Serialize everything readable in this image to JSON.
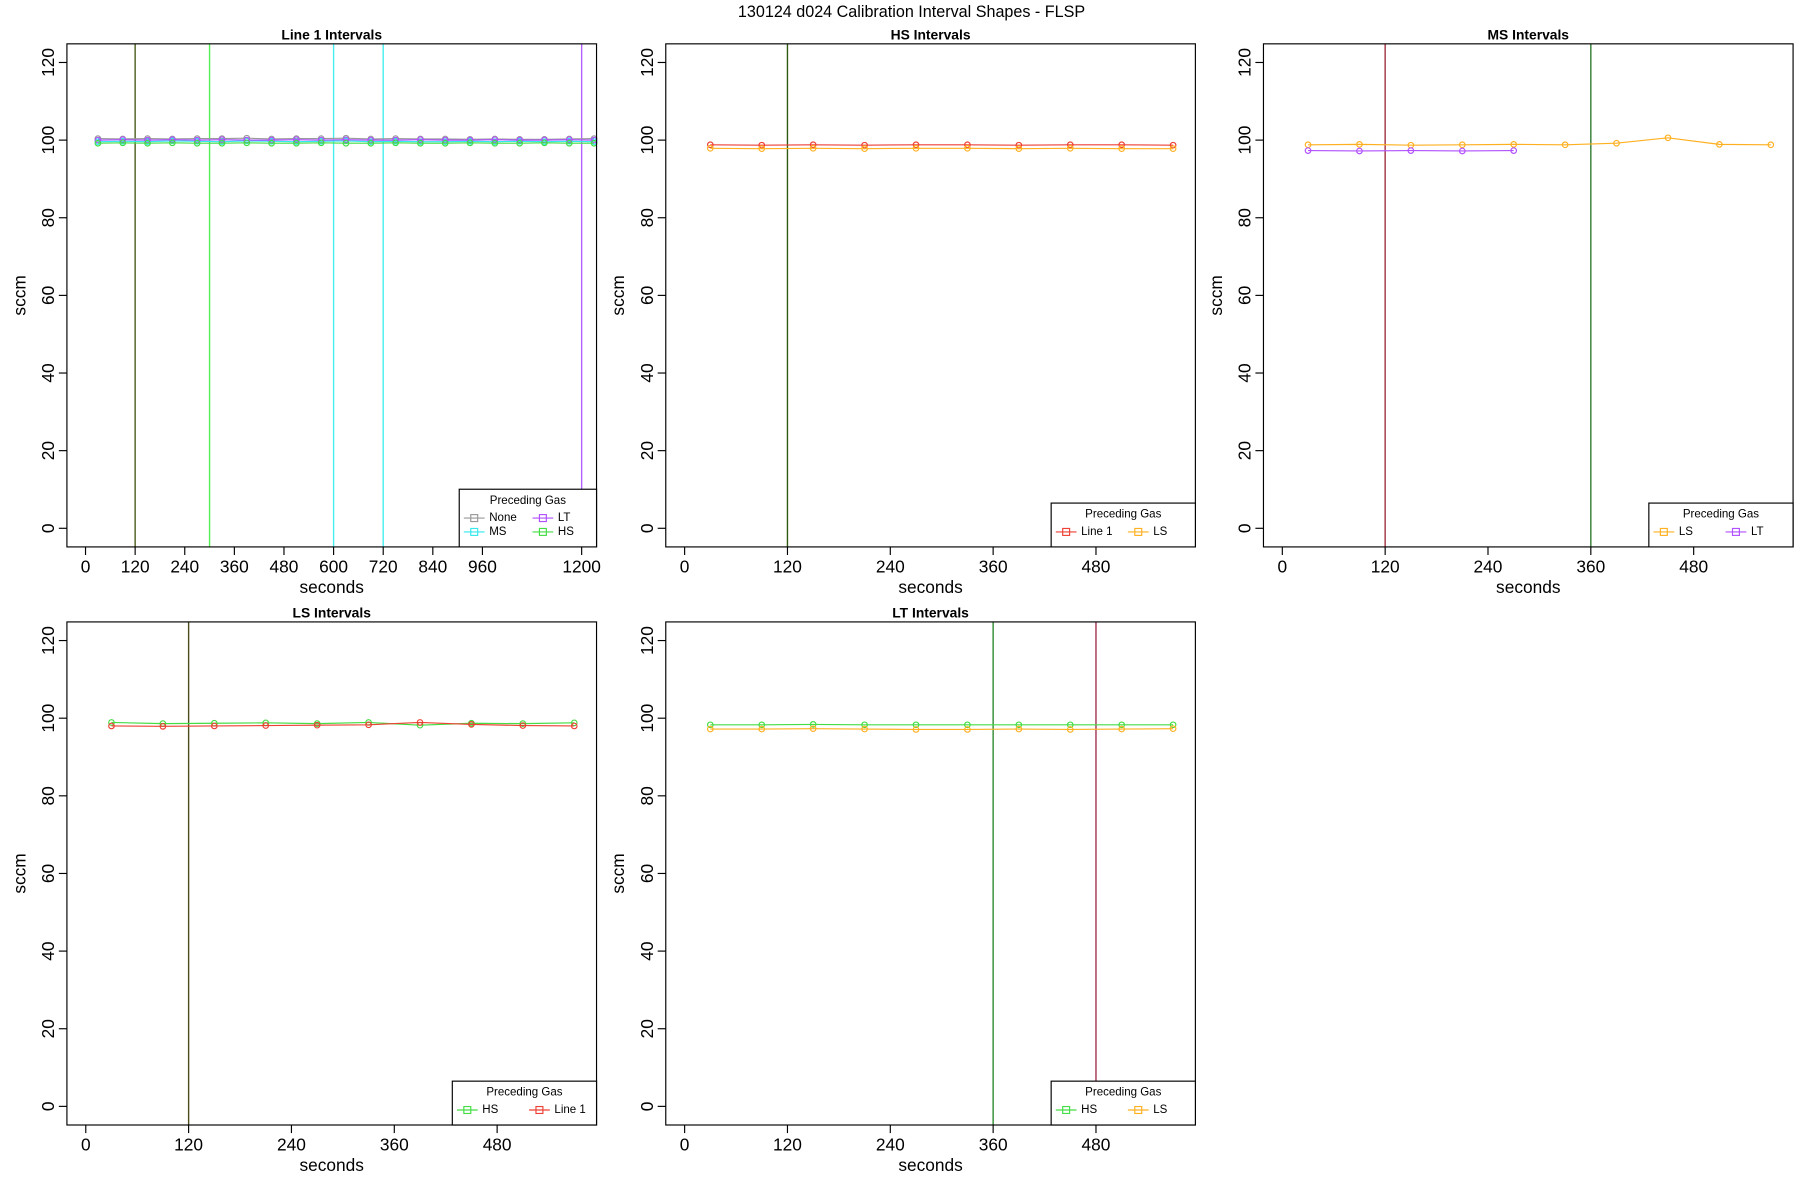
{
  "title": "130124   d024   Calibration Interval Shapes - FLSP",
  "chart_data": [
    {
      "type": "line",
      "title": "Line 1 Intervals",
      "xlabel": "seconds",
      "ylabel": "sccm",
      "x": [
        30,
        90,
        150,
        210,
        270,
        330,
        390,
        450,
        510,
        570,
        630,
        690,
        750,
        810,
        870,
        930,
        990,
        1050,
        1110,
        1170,
        1230
      ],
      "xlim": [
        -45,
        1236
      ],
      "ylim": [
        -4.8,
        124.8
      ],
      "xticks": [
        0,
        120,
        240,
        360,
        480,
        600,
        720,
        840,
        960,
        1200
      ],
      "yticks": [
        0,
        20,
        40,
        60,
        80,
        100,
        120
      ],
      "legend_title": "Preceding Gas",
      "legend": "bottomright",
      "series": [
        {
          "name": "None",
          "color": "#999999",
          "values": [
            100.4,
            100.3,
            100.4,
            100.3,
            100.4,
            100.4,
            100.5,
            100.3,
            100.4,
            100.4,
            100.5,
            100.3,
            100.4,
            100.3,
            100.3,
            100.2,
            100.3,
            100.2,
            100.2,
            100.3,
            100.4
          ]
        },
        {
          "name": "MS",
          "color": "#33e8ee",
          "values": [
            99.6,
            99.7,
            99.6,
            99.8,
            99.7,
            99.6,
            99.8,
            99.7,
            99.6,
            99.7,
            99.8,
            99.6,
            99.7,
            99.6,
            99.6,
            99.7,
            99.6,
            99.7,
            99.6,
            99.7,
            99.6
          ]
        },
        {
          "name": "LT",
          "color": "#b050ff",
          "values": [
            100.0,
            100.1,
            100.0,
            100.1,
            100.0,
            100.1,
            100.0,
            100.0,
            100.1,
            100.0,
            100.1,
            100.0,
            100.0,
            100.1,
            100.0,
            100.0,
            100.1,
            100.0,
            100.0,
            100.1,
            100.0
          ]
        },
        {
          "name": "HS",
          "color": "#44dd44",
          "values": [
            99.2,
            99.3,
            99.2,
            99.3,
            99.2,
            99.2,
            99.3,
            99.2,
            99.2,
            99.3,
            99.2,
            99.2,
            99.3,
            99.2,
            99.2,
            99.3,
            99.2,
            99.2,
            99.3,
            99.2,
            99.2
          ]
        }
      ],
      "vlines": {
        "x": [
          120,
          300,
          600,
          720,
          1200
        ],
        "colors": [
          "#4a5a1a",
          "#55ee55",
          "#44eeee",
          "#44eeee",
          "#b060ff"
        ]
      }
    },
    {
      "type": "line",
      "title": "HS Intervals",
      "xlabel": "seconds",
      "ylabel": "sccm",
      "x": [
        30,
        90,
        150,
        210,
        270,
        330,
        390,
        450,
        510,
        570
      ],
      "xlim": [
        -22,
        596
      ],
      "ylim": [
        -4.8,
        124.8
      ],
      "xticks": [
        0,
        120,
        240,
        360,
        480
      ],
      "yticks": [
        0,
        20,
        40,
        60,
        80,
        100,
        120
      ],
      "legend_title": "Preceding Gas",
      "legend": "bottomright",
      "series": [
        {
          "name": "Line 1",
          "color": "#ee4035",
          "values": [
            98.8,
            98.7,
            98.8,
            98.7,
            98.8,
            98.8,
            98.7,
            98.8,
            98.8,
            98.7
          ]
        },
        {
          "name": "LS",
          "color": "#ffb020",
          "values": [
            97.9,
            97.8,
            97.9,
            97.8,
            97.9,
            97.9,
            97.8,
            97.9,
            97.8,
            97.8
          ]
        }
      ],
      "vlines": {
        "x": [
          120
        ],
        "colors": [
          "#2f5a10"
        ]
      }
    },
    {
      "type": "line",
      "title": "MS Intervals",
      "xlabel": "seconds",
      "ylabel": "sccm",
      "x": [
        30,
        90,
        150,
        210,
        270,
        330,
        390,
        450,
        510,
        570
      ],
      "xlim": [
        -22,
        596
      ],
      "ylim": [
        -4.8,
        124.8
      ],
      "xticks": [
        0,
        120,
        240,
        360,
        480
      ],
      "yticks": [
        0,
        20,
        40,
        60,
        80,
        100,
        120
      ],
      "legend_title": "Preceding Gas",
      "legend": "bottomright",
      "series": [
        {
          "name": "LS",
          "color": "#ffb020",
          "values": [
            98.8,
            98.9,
            98.7,
            98.8,
            98.9,
            98.8,
            99.2,
            100.6,
            98.9,
            98.8
          ]
        },
        {
          "name": "LT",
          "color": "#b050ff",
          "values": [
            97.3,
            97.2,
            97.3,
            97.2,
            97.3,
            null,
            null,
            null,
            null,
            null
          ]
        }
      ],
      "vlines": {
        "x": [
          120,
          360
        ],
        "colors": [
          "#a03040",
          "#2f7a2f"
        ]
      }
    },
    {
      "type": "line",
      "title": "LS Intervals",
      "xlabel": "seconds",
      "ylabel": "sccm",
      "x": [
        30,
        90,
        150,
        210,
        270,
        330,
        390,
        450,
        510,
        570
      ],
      "xlim": [
        -22,
        596
      ],
      "ylim": [
        -4.8,
        124.8
      ],
      "xticks": [
        0,
        120,
        240,
        360,
        480
      ],
      "yticks": [
        0,
        20,
        40,
        60,
        80,
        100,
        120
      ],
      "legend_title": "Preceding Gas",
      "legend": "bottomright",
      "series": [
        {
          "name": "HS",
          "color": "#44dd44",
          "values": [
            98.9,
            98.6,
            98.7,
            98.8,
            98.6,
            98.9,
            98.2,
            98.7,
            98.6,
            98.8
          ]
        },
        {
          "name": "Line 1",
          "color": "#ee4035",
          "values": [
            98.0,
            97.9,
            98.0,
            98.1,
            98.2,
            98.3,
            98.9,
            98.4,
            98.1,
            98.0
          ]
        }
      ],
      "vlines": {
        "x": [
          120
        ],
        "colors": [
          "#4a4a1a"
        ]
      }
    },
    {
      "type": "line",
      "title": "LT Intervals",
      "xlabel": "seconds",
      "ylabel": "sccm",
      "x": [
        30,
        90,
        150,
        210,
        270,
        330,
        390,
        450,
        510,
        570
      ],
      "xlim": [
        -22,
        596
      ],
      "ylim": [
        -4.8,
        124.8
      ],
      "xticks": [
        0,
        120,
        240,
        360,
        480
      ],
      "yticks": [
        0,
        20,
        40,
        60,
        80,
        100,
        120
      ],
      "legend_title": "Preceding Gas",
      "legend": "bottomright",
      "series": [
        {
          "name": "HS",
          "color": "#44dd44",
          "values": [
            98.3,
            98.3,
            98.4,
            98.3,
            98.3,
            98.3,
            98.3,
            98.3,
            98.3,
            98.3
          ]
        },
        {
          "name": "LS",
          "color": "#ffb020",
          "values": [
            97.2,
            97.2,
            97.3,
            97.2,
            97.1,
            97.1,
            97.2,
            97.1,
            97.2,
            97.3
          ]
        }
      ],
      "vlines": {
        "x": [
          360,
          480
        ],
        "colors": [
          "#2f8a2f",
          "#a03050"
        ]
      }
    }
  ]
}
